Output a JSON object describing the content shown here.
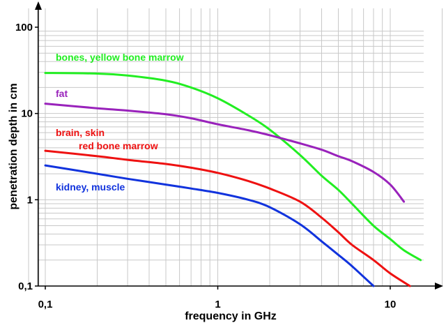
{
  "chart_data": {
    "type": "line",
    "title": "",
    "xlabel": "frequency in GHz",
    "ylabel": "penetration depth in cm",
    "x_scale": "log",
    "y_scale": "log",
    "xlim": [
      0.08,
      20
    ],
    "ylim": [
      0.1,
      100
    ],
    "x_ticks": [
      {
        "value": 0.1,
        "label": "0,1"
      },
      {
        "value": 1,
        "label": "1"
      },
      {
        "value": 10,
        "label": "10"
      }
    ],
    "y_ticks": [
      {
        "value": 0.1,
        "label": "0,1"
      },
      {
        "value": 1,
        "label": "1"
      },
      {
        "value": 10,
        "label": "10"
      },
      {
        "value": 100,
        "label": "100"
      }
    ],
    "grid": true,
    "legend": "inline labels",
    "series": [
      {
        "key": "bones",
        "labels": [
          "bones, yellow bone marrow"
        ],
        "color": "#22ee22",
        "points": [
          [
            0.1,
            29.5
          ],
          [
            0.2,
            29
          ],
          [
            0.3,
            27.5
          ],
          [
            0.5,
            24
          ],
          [
            0.7,
            20
          ],
          [
            1,
            15
          ],
          [
            1.5,
            9.5
          ],
          [
            2,
            6.5
          ],
          [
            3,
            3.3
          ],
          [
            4,
            1.9
          ],
          [
            5,
            1.3
          ],
          [
            6,
            0.9
          ],
          [
            8,
            0.5
          ],
          [
            10,
            0.35
          ],
          [
            12,
            0.26
          ],
          [
            15,
            0.2
          ]
        ]
      },
      {
        "key": "fat",
        "labels": [
          "fat"
        ],
        "color": "#9922bb",
        "points": [
          [
            0.1,
            13
          ],
          [
            0.2,
            11.5
          ],
          [
            0.3,
            10.8
          ],
          [
            0.5,
            9.8
          ],
          [
            0.7,
            8.8
          ],
          [
            1,
            7.5
          ],
          [
            1.5,
            6.4
          ],
          [
            2,
            5.6
          ],
          [
            3,
            4.5
          ],
          [
            4,
            3.8
          ],
          [
            5,
            3.2
          ],
          [
            6,
            2.8
          ],
          [
            8,
            2.1
          ],
          [
            10,
            1.5
          ],
          [
            12,
            0.95
          ]
        ]
      },
      {
        "key": "brain",
        "labels": [
          "brain, skin",
          "red bone marrow"
        ],
        "color": "#ee1111",
        "points": [
          [
            0.1,
            3.7
          ],
          [
            0.2,
            3.2
          ],
          [
            0.3,
            2.9
          ],
          [
            0.5,
            2.6
          ],
          [
            0.7,
            2.35
          ],
          [
            1,
            2.05
          ],
          [
            1.5,
            1.65
          ],
          [
            2,
            1.35
          ],
          [
            3,
            0.95
          ],
          [
            4,
            0.62
          ],
          [
            5,
            0.42
          ],
          [
            6,
            0.3
          ],
          [
            8,
            0.2
          ],
          [
            10,
            0.14
          ],
          [
            13,
            0.1
          ]
        ]
      },
      {
        "key": "kidney",
        "labels": [
          "kidney, muscle"
        ],
        "color": "#1133dd",
        "points": [
          [
            0.1,
            2.5
          ],
          [
            0.2,
            2.0
          ],
          [
            0.3,
            1.75
          ],
          [
            0.5,
            1.5
          ],
          [
            0.7,
            1.35
          ],
          [
            1,
            1.2
          ],
          [
            1.5,
            1.0
          ],
          [
            2,
            0.82
          ],
          [
            3,
            0.52
          ],
          [
            4,
            0.33
          ],
          [
            5,
            0.23
          ],
          [
            6,
            0.17
          ],
          [
            8,
            0.1
          ]
        ]
      }
    ]
  }
}
